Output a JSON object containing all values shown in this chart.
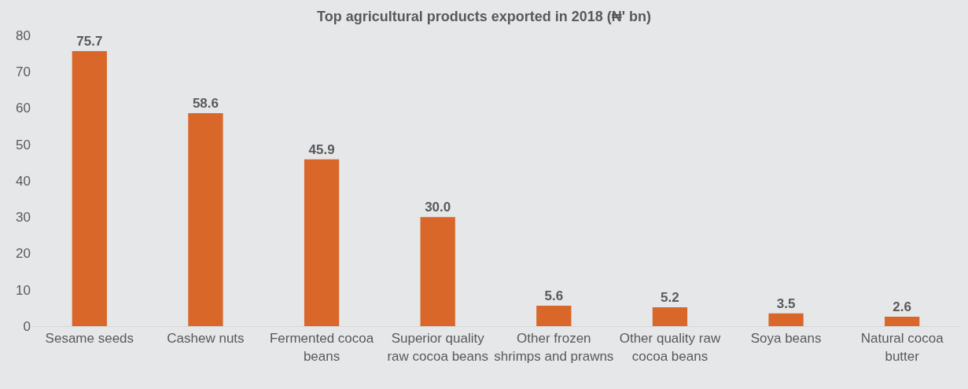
{
  "chart_data": {
    "type": "bar",
    "title": "Top agricultural products exported in 2018 (₦' bn)",
    "categories": [
      "Sesame seeds",
      "Cashew nuts",
      "Fermented cocoa beans",
      "Superior quality raw cocoa beans",
      "Other frozen shrimps and prawns",
      "Other quality raw cocoa beans",
      "Soya beans",
      "Natural cocoa butter"
    ],
    "values": [
      75.7,
      58.6,
      45.9,
      30.0,
      5.6,
      5.2,
      3.5,
      2.6
    ],
    "value_labels": [
      "75.7",
      "58.6",
      "45.9",
      "30.0",
      "5.6",
      "5.2",
      "3.5",
      "2.6"
    ],
    "color": "#d9672a",
    "ylim": [
      0,
      80
    ],
    "yticks": [
      0,
      10,
      20,
      30,
      40,
      50,
      60,
      70,
      80
    ],
    "grid": false,
    "legend": false
  }
}
